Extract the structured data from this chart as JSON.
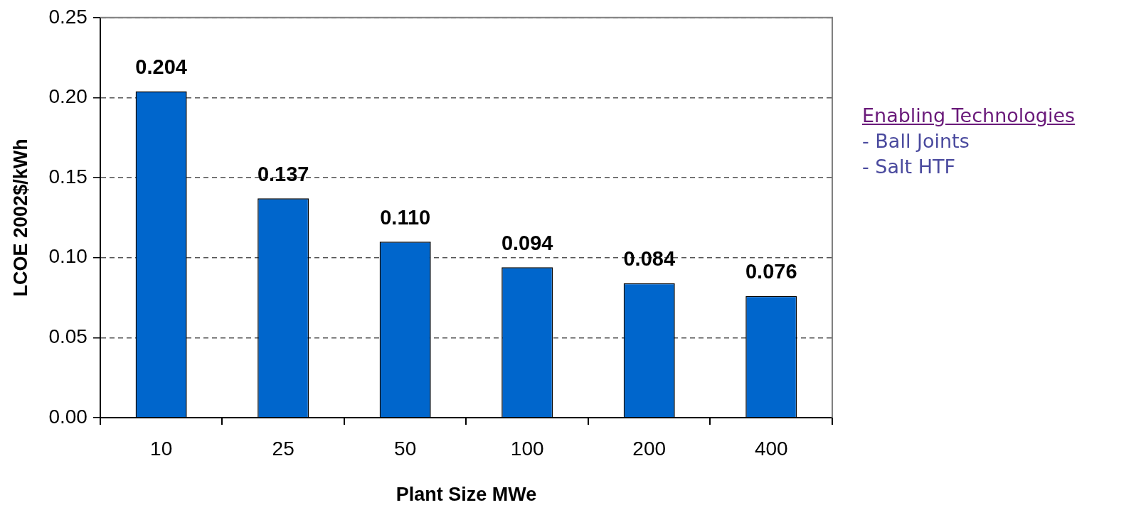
{
  "chart_data": {
    "type": "bar",
    "xlabel": "Plant Size MWe",
    "ylabel": "LCOE 2002$/kWh",
    "categories": [
      "10",
      "25",
      "50",
      "100",
      "200",
      "400"
    ],
    "values": [
      0.204,
      0.137,
      0.11,
      0.094,
      0.084,
      0.076
    ],
    "value_labels": [
      "0.204",
      "0.137",
      "0.110",
      "0.094",
      "0.084",
      "0.076"
    ],
    "color": "#0066cc",
    "ylim": [
      0,
      0.25
    ],
    "yticks": [
      {
        "value": 0,
        "label": "0.00"
      },
      {
        "value": 0.05,
        "label": "0.05"
      },
      {
        "value": 0.1,
        "label": "0.10"
      },
      {
        "value": 0.15,
        "label": "0.15"
      },
      {
        "value": 0.2,
        "label": "0.20"
      },
      {
        "value": 0.25,
        "label": "0.25"
      }
    ],
    "grid": "y",
    "legend": false,
    "annotations": [
      "Enabling Technologies",
      "- Ball Joints",
      "- Salt HTF"
    ]
  }
}
